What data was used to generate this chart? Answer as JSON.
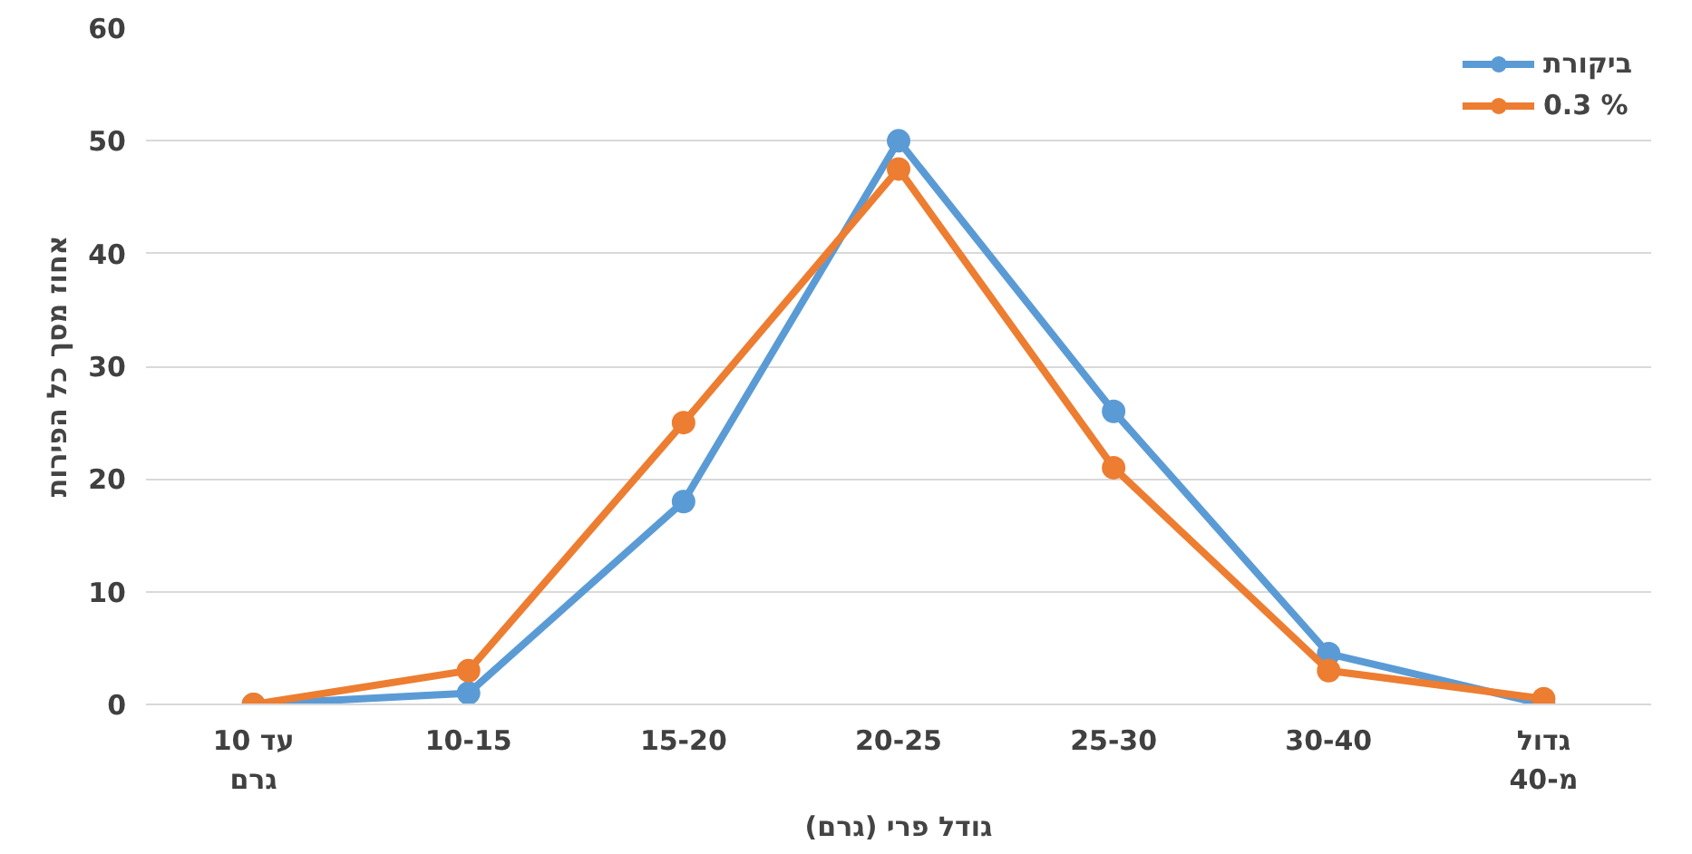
{
  "chart_data": {
    "type": "line",
    "xlabel": "גודל פרי (גרם)",
    "ylabel": "אחוז מסך כל הפירות",
    "categories": [
      "עד 10 גרם",
      "10-15",
      "15-20",
      "20-25",
      "25-30",
      "30-40",
      "גדול מ-40"
    ],
    "series": [
      {
        "name": "ביקורת",
        "color": "#5b9bd5",
        "values": [
          0,
          1,
          18,
          50,
          26,
          4.5,
          0
        ]
      },
      {
        "name": "0.3 %",
        "color": "#ed7d31",
        "values": [
          0,
          3,
          25,
          47.5,
          21,
          3,
          0.5
        ]
      }
    ],
    "ylim": [
      0,
      60
    ],
    "yticks": [
      0,
      10,
      20,
      30,
      40,
      50,
      60
    ],
    "grid": "y",
    "legend": "top right",
    "marker": "circle",
    "line_style": "solid"
  }
}
